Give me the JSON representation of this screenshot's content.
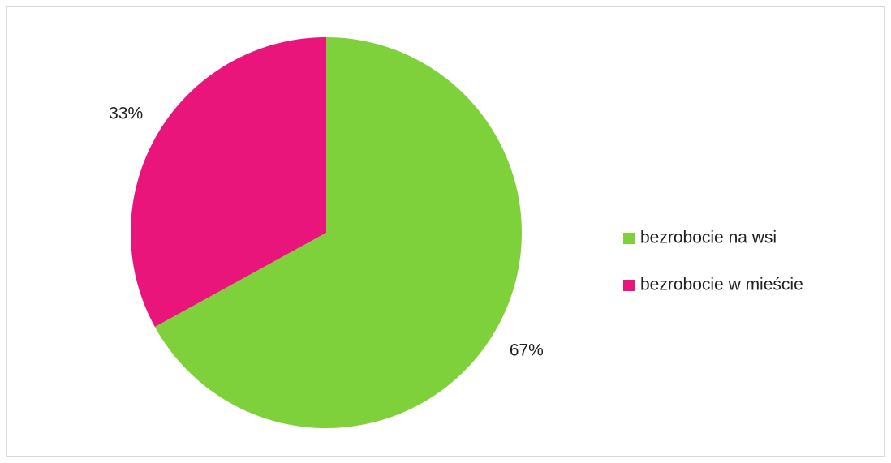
{
  "chart_data": {
    "type": "pie",
    "categories": [
      "bezrobocie na wsi",
      "bezrobocie w mieście"
    ],
    "values": [
      67,
      33
    ],
    "value_labels": [
      "67%",
      "33%"
    ],
    "colors": [
      "#7fd13b",
      "#ea157a"
    ],
    "legend": "right"
  }
}
